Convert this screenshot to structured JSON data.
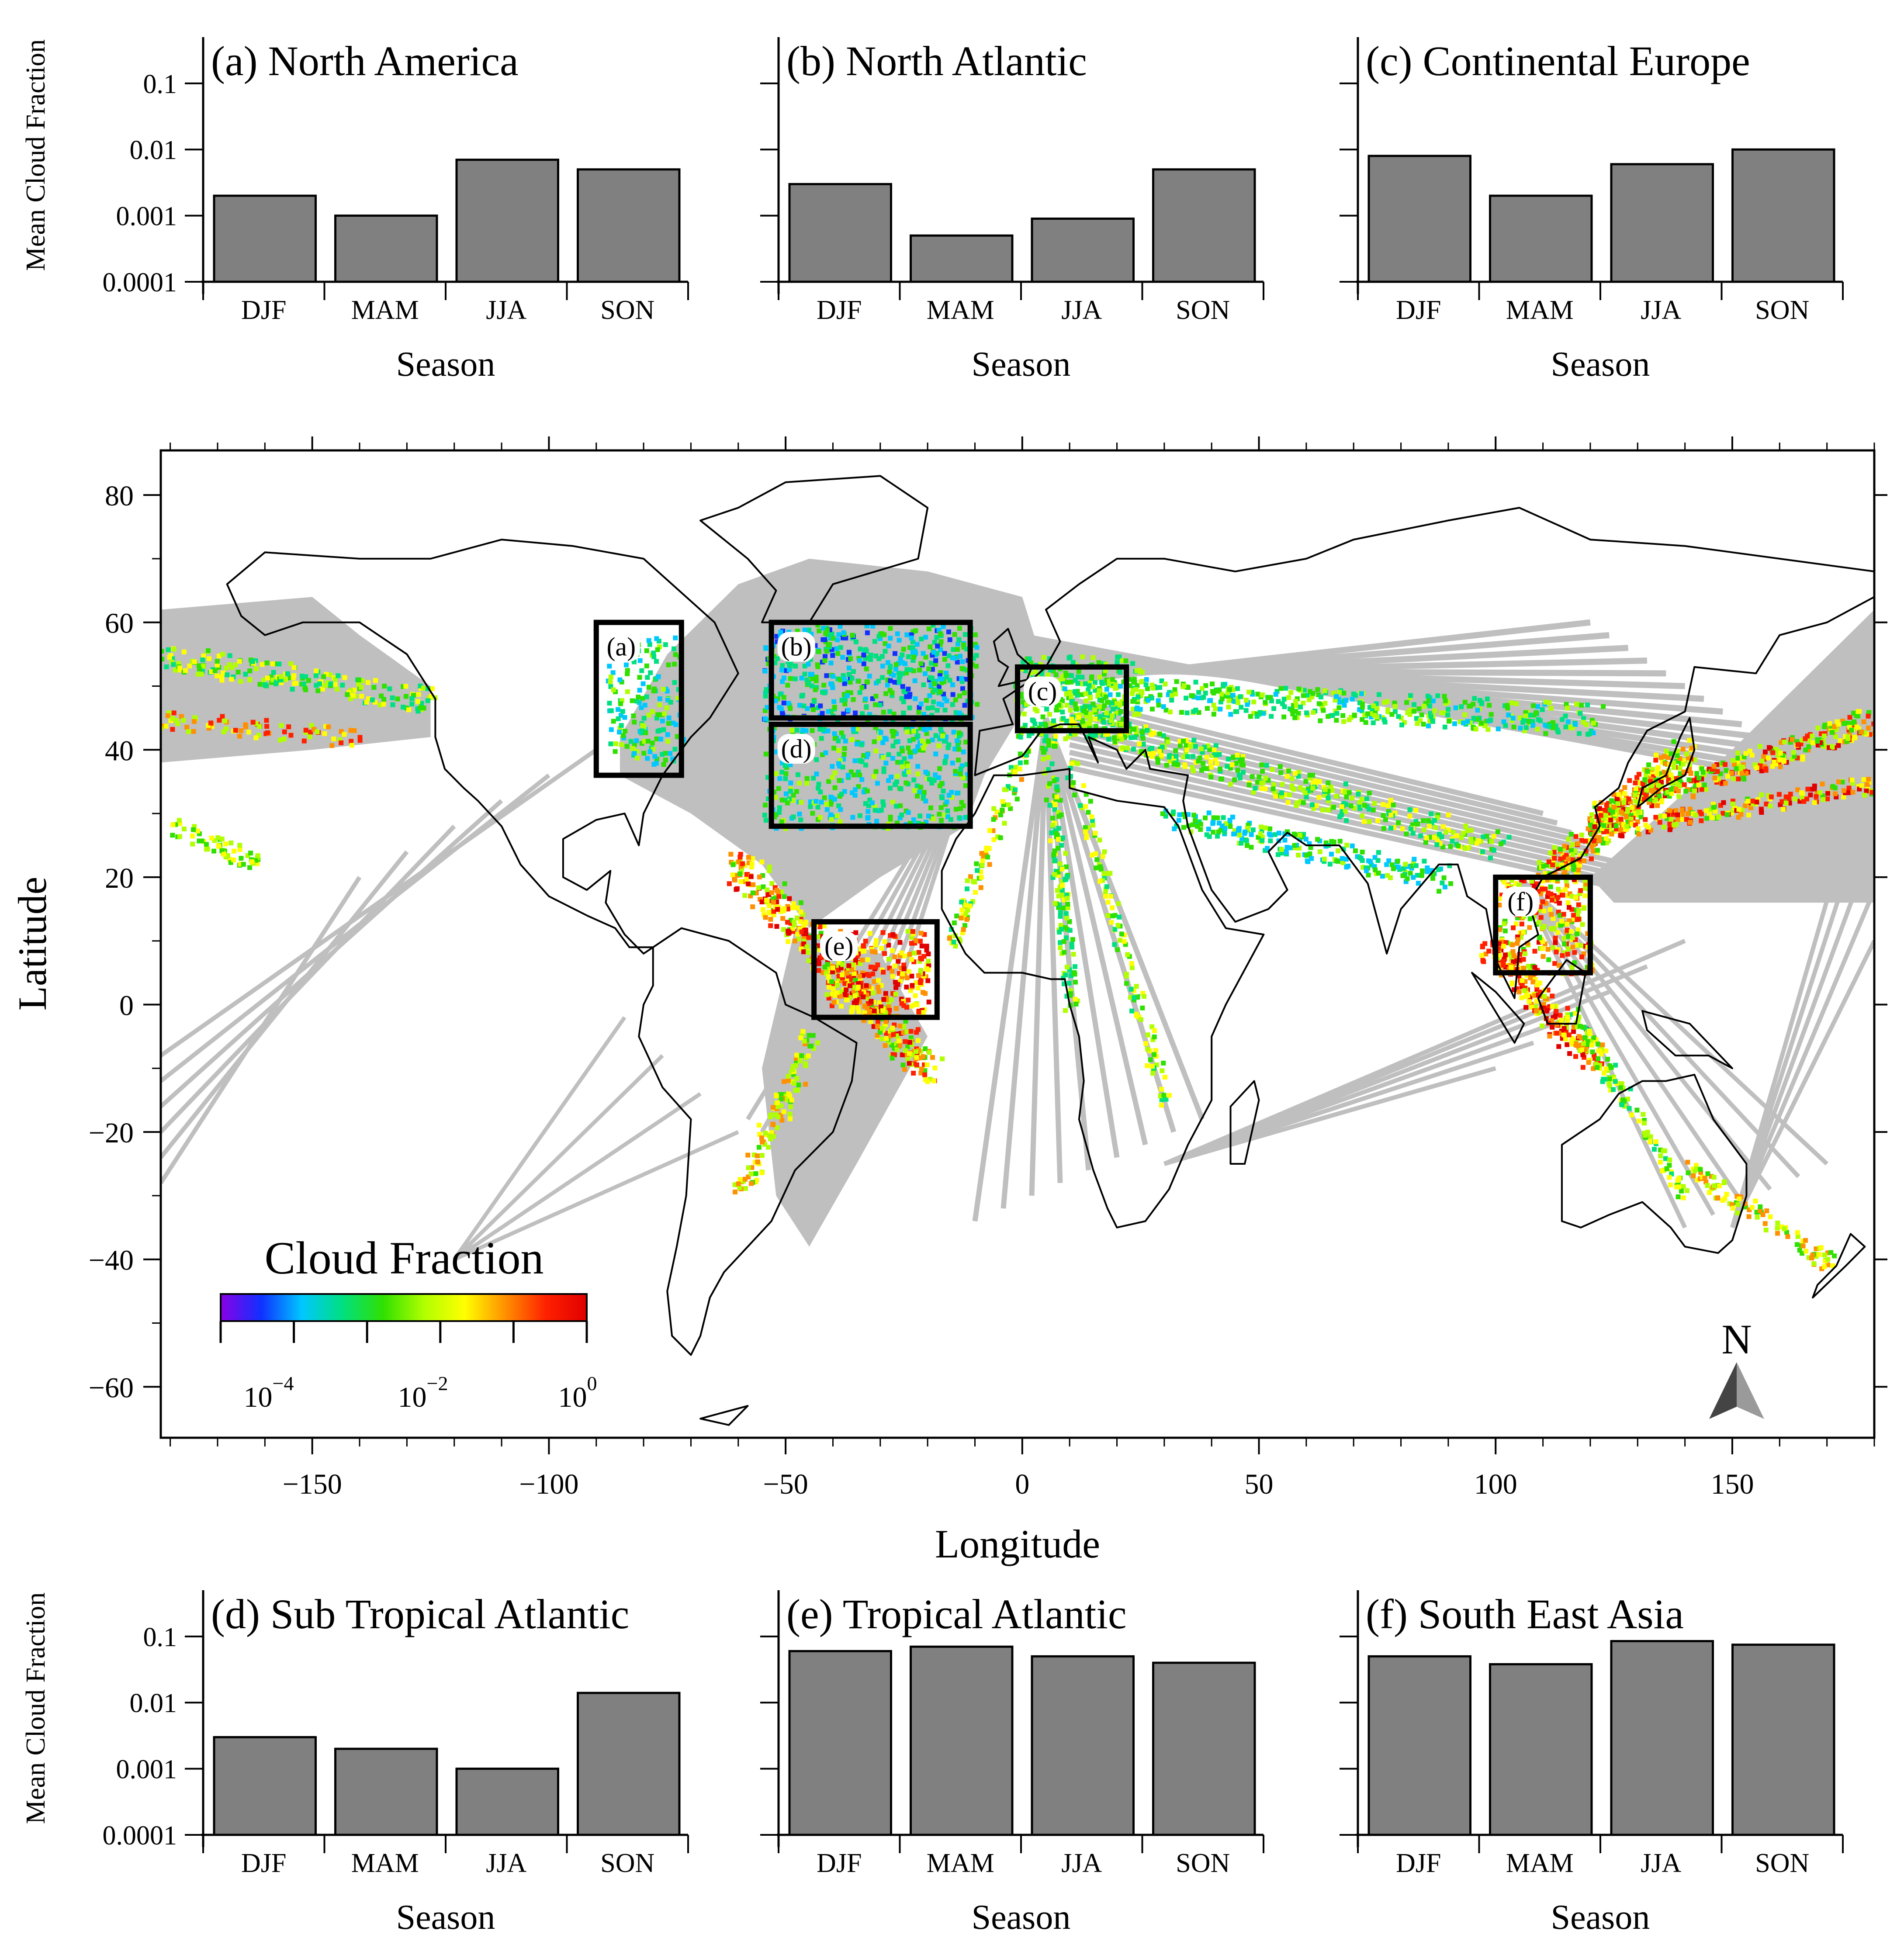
{
  "colors": {
    "bar_fill": "#808080",
    "bar_stroke": "#000000",
    "route_gray": "#bfbfbf",
    "land_outline": "#000000",
    "region_box": "#000000",
    "colormap": [
      "#8a00e6",
      "#1030ff",
      "#00c8ff",
      "#00e080",
      "#30e000",
      "#b0ff00",
      "#ffff00",
      "#ff9000",
      "#ff2000",
      "#e00000"
    ]
  },
  "bar_axis_common": {
    "ylabel": "Mean Cloud Fraction",
    "xlabel": "Season",
    "ytick_labels": [
      "0.1",
      "0.01",
      "0.001",
      "0.0001"
    ],
    "ytick_values": [
      0.1,
      0.01,
      0.001,
      0.0001
    ],
    "ylim": [
      0.0001,
      0.5
    ],
    "yscale": "log"
  },
  "chart_data": [
    {
      "type": "bar",
      "title": "(a) North America",
      "categories": [
        "DJF",
        "MAM",
        "JJA",
        "SON"
      ],
      "values": [
        0.002,
        0.001,
        0.007,
        0.005
      ]
    },
    {
      "type": "bar",
      "title": "(b) North Atlantic",
      "categories": [
        "DJF",
        "MAM",
        "JJA",
        "SON"
      ],
      "values": [
        0.003,
        0.0005,
        0.0009,
        0.005
      ]
    },
    {
      "type": "bar",
      "title": "(c) Continental Europe",
      "categories": [
        "DJF",
        "MAM",
        "JJA",
        "SON"
      ],
      "values": [
        0.008,
        0.002,
        0.006,
        0.01
      ]
    },
    {
      "type": "bar",
      "title": "(d) Sub Tropical Atlantic",
      "categories": [
        "DJF",
        "MAM",
        "JJA",
        "SON"
      ],
      "values": [
        0.003,
        0.002,
        0.001,
        0.014
      ]
    },
    {
      "type": "bar",
      "title": "(e) Tropical Atlantic",
      "categories": [
        "DJF",
        "MAM",
        "JJA",
        "SON"
      ],
      "values": [
        0.06,
        0.07,
        0.05,
        0.04
      ]
    },
    {
      "type": "bar",
      "title": "(f) South East Asia",
      "categories": [
        "DJF",
        "MAM",
        "JJA",
        "SON"
      ],
      "values": [
        0.05,
        0.038,
        0.085,
        0.075
      ]
    },
    {
      "type": "heatmap",
      "xlabel": "Longitude",
      "ylabel": "Latitude",
      "xlim": [
        -182,
        180
      ],
      "ylim": [
        -68,
        87
      ],
      "xticks": [
        -150,
        -100,
        -50,
        0,
        50,
        100,
        150
      ],
      "xtick_labels": [
        "−150",
        "−100",
        "−50",
        "0",
        "50",
        "100",
        "150"
      ],
      "yticks": [
        80,
        60,
        40,
        20,
        0,
        -20,
        -40,
        -60
      ],
      "ytick_labels": [
        "80",
        "60",
        "40",
        "20",
        "0",
        "−20",
        "−40",
        "−60"
      ],
      "regions": [
        {
          "label": "(a)",
          "lon": [
            -90,
            -72
          ],
          "lat": [
            36,
            60
          ]
        },
        {
          "label": "(b)",
          "lon": [
            -53,
            -11
          ],
          "lat": [
            45,
            60
          ]
        },
        {
          "label": "(c)",
          "lon": [
            -1,
            22
          ],
          "lat": [
            43,
            53
          ]
        },
        {
          "label": "(d)",
          "lon": [
            -53,
            -11
          ],
          "lat": [
            28,
            44
          ]
        },
        {
          "label": "(e)",
          "lon": [
            -44,
            -18
          ],
          "lat": [
            -2,
            13
          ]
        },
        {
          "label": "(f)",
          "lon": [
            100,
            120
          ],
          "lat": [
            5,
            20
          ]
        }
      ],
      "colorbar": {
        "title": "Cloud Fraction",
        "tick_labels": [
          {
            "base": "10",
            "exp": "−4"
          },
          {
            "base": "10",
            "exp": "−2"
          },
          {
            "base": "10",
            "exp": "0"
          }
        ],
        "range_log10": [
          -5,
          0
        ],
        "scale": "log"
      },
      "north_arrow_label": "N"
    }
  ]
}
